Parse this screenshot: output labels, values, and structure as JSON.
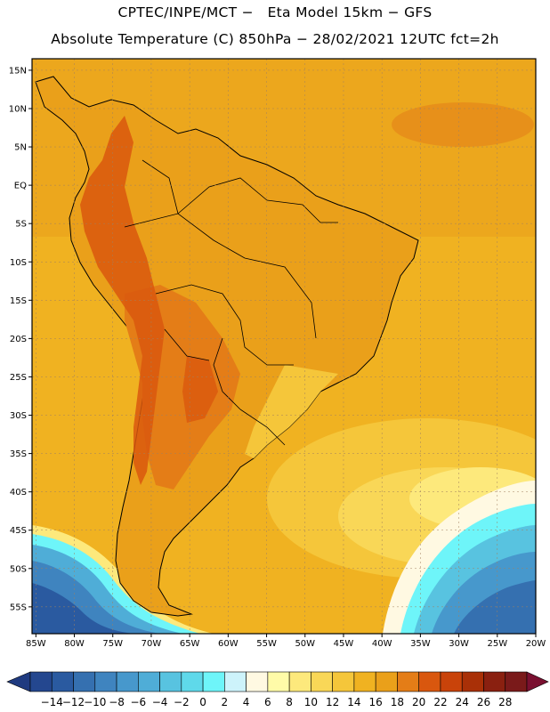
{
  "header": {
    "line1": "CPTEC/INPE/MCT −   Eta Model 15km − GFS",
    "line2": "Absolute Temperature (C) 850hPa − 28/02/2021 12UTC fct=2h"
  },
  "map": {
    "lat_labels": [
      "15N",
      "10N",
      "5N",
      "EQ",
      "5S",
      "10S",
      "15S",
      "20S",
      "25S",
      "30S",
      "35S",
      "40S",
      "45S",
      "50S",
      "55S"
    ],
    "lon_labels": [
      "85W",
      "80W",
      "75W",
      "70W",
      "65W",
      "60W",
      "55W",
      "50W",
      "45W",
      "40W",
      "35W",
      "30W",
      "25W",
      "20W"
    ],
    "lat_values": [
      15,
      10,
      5,
      0,
      -5,
      -10,
      -15,
      -20,
      -25,
      -30,
      -35,
      -40,
      -45,
      -50,
      -55
    ],
    "lon_values": [
      -85,
      -80,
      -75,
      -70,
      -65,
      -60,
      -55,
      -50,
      -45,
      -40,
      -35,
      -30,
      -25,
      -20
    ],
    "extent": {
      "lon_min": -85.5,
      "lon_max": -20,
      "lat_min": -58.5,
      "lat_max": 16.5
    }
  },
  "colorbar": {
    "labels": [
      "-14",
      "-12",
      "-10",
      "-8",
      "-6",
      "-4",
      "-2",
      "0",
      "2",
      "4",
      "6",
      "8",
      "10",
      "12",
      "14",
      "16",
      "18",
      "20",
      "22",
      "24",
      "26",
      "28"
    ],
    "colors": [
      "#24478f",
      "#2a5aa0",
      "#3570b0",
      "#3f84bf",
      "#4798cc",
      "#4fadd7",
      "#58c3e0",
      "#5fd9ea",
      "#6ef5f9",
      "#cdf3fb",
      "#fff9e2",
      "#fffba8",
      "#fde97c",
      "#f9d757",
      "#f5c63a",
      "#f0b221",
      "#eaa01a",
      "#e47d17",
      "#d9570e",
      "#c9430a",
      "#a93007",
      "#8a2010",
      "#7a1a1a"
    ],
    "under_color": "#1f3a80",
    "over_color": "#7a1030"
  },
  "colors": {
    "ocean_warm": "#f0b221",
    "land_hot": "#e47d17",
    "andes": "#d9570e",
    "coastline": "#000000",
    "grid": "#a08060"
  }
}
